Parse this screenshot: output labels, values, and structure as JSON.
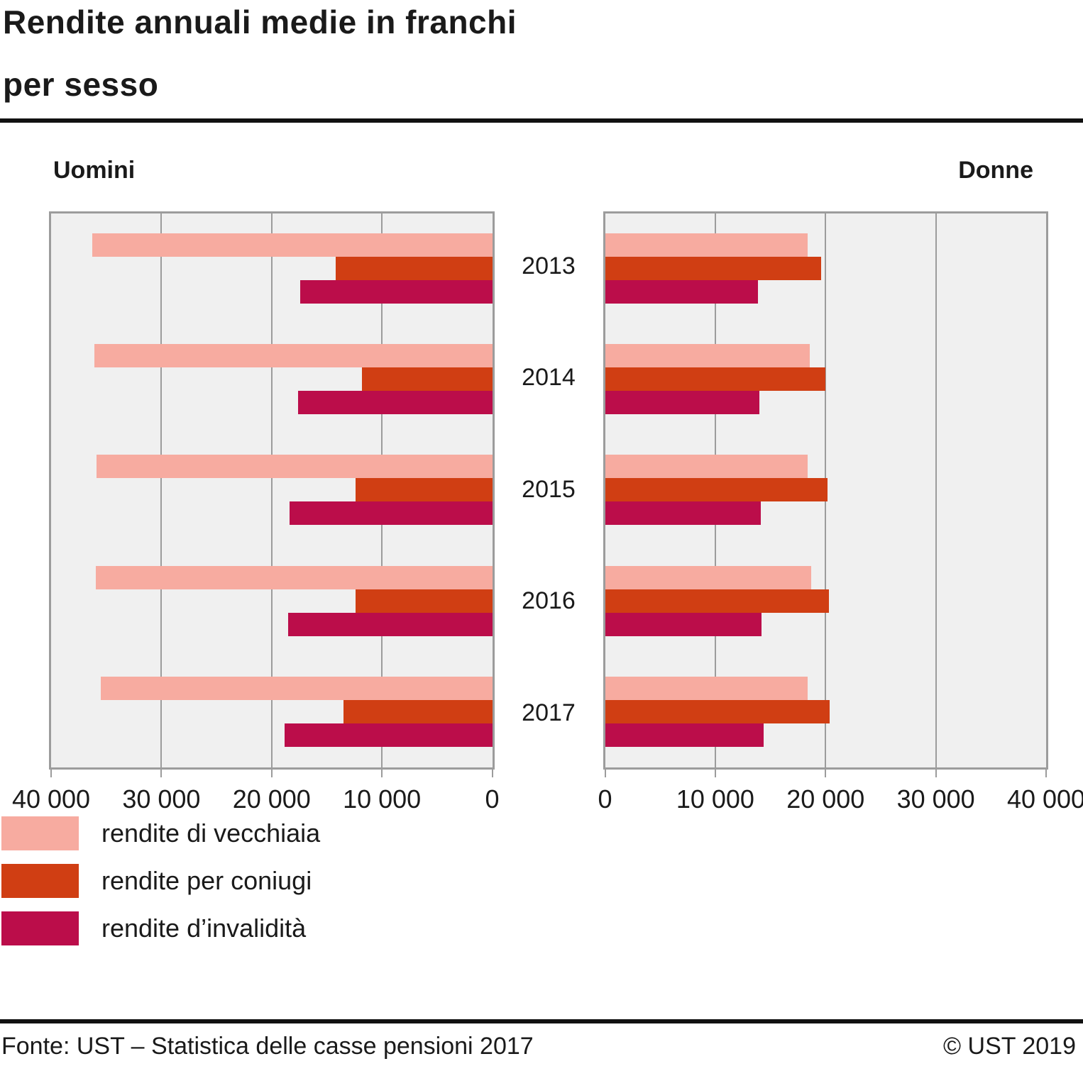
{
  "title": {
    "line1": "Rendite annuali medie in franchi",
    "line2": "per sesso"
  },
  "panel_headers": {
    "left": "Uomini",
    "right": "Donne"
  },
  "colors": {
    "vecchiaia": "#f7aba0",
    "coniugi": "#d03e13",
    "invalidita": "#bb0d4a",
    "panel_background": "#f0f0f0",
    "grid": "#9c9c9c",
    "rule": "#111111",
    "text": "#1a1a1a"
  },
  "chart_data": {
    "type": "bar",
    "orientation": "horizontal back-to-back pyramid",
    "title": "Rendite annuali medie in franchi per sesso",
    "categories": [
      "2013",
      "2014",
      "2015",
      "2016",
      "2017"
    ],
    "xlim": [
      0,
      40000
    ],
    "grid": "on",
    "axis_ticks_left_panel": [
      "40 000",
      "30 000",
      "20 000",
      "10 000",
      "0"
    ],
    "axis_ticks_right_panel": [
      "0",
      "10 000",
      "20 000",
      "30 000",
      "40 000"
    ],
    "panels": [
      {
        "name": "Uomini",
        "direction": "right-to-left",
        "series": [
          {
            "name": "rendite di vecchiaia",
            "values": [
              36300,
              36100,
              35900,
              35950,
              35500
            ]
          },
          {
            "name": "rendite per coniugi",
            "values": [
              14200,
              11800,
              12400,
              12400,
              13500
            ]
          },
          {
            "name": "rendite d’invalidità",
            "values": [
              17400,
              17600,
              18400,
              18500,
              18800
            ]
          }
        ]
      },
      {
        "name": "Donne",
        "direction": "left-to-right",
        "series": [
          {
            "name": "rendite di vecchiaia",
            "values": [
              18350,
              18600,
              18400,
              18700,
              18400
            ]
          },
          {
            "name": "rendite per coniugi",
            "values": [
              19600,
              20000,
              20200,
              20300,
              20400
            ]
          },
          {
            "name": "rendite d’invalidità",
            "values": [
              13900,
              14000,
              14100,
              14200,
              14400
            ]
          }
        ]
      }
    ],
    "legend_position": "bottom-left"
  },
  "legend": [
    {
      "key": "vecchiaia",
      "label": "rendite di vecchiaia"
    },
    {
      "key": "coniugi",
      "label": "rendite per coniugi"
    },
    {
      "key": "invalidita",
      "label": "rendite d’invalidità"
    }
  ],
  "footer": {
    "source": "Fonte: UST – Statistica delle casse pensioni 2017",
    "copyright": "© UST 2019"
  }
}
